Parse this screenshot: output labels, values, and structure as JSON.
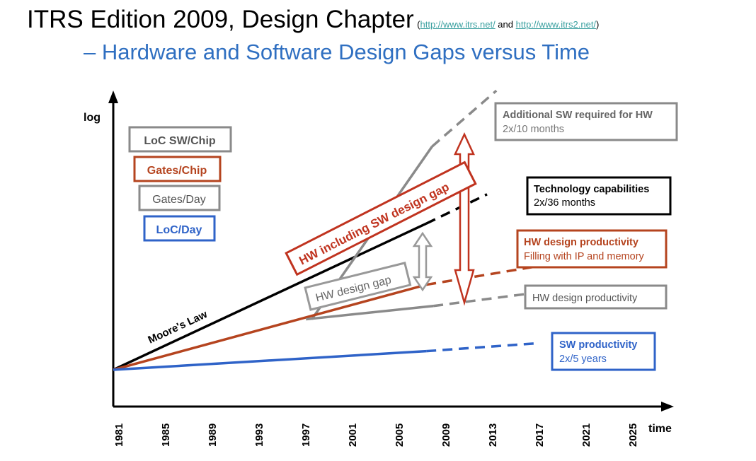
{
  "slide": {
    "title": "ITRS Edition 2009, Design Chapter",
    "links_open": "(",
    "link1": "http://www.itrs.net/",
    "links_and": " and ",
    "link2": "http://www.itrs2.net/",
    "links_close": ")",
    "subtitle": "–    Hardware and Software Design Gaps versus Time"
  },
  "colors": {
    "black": "#000000",
    "red": "#b5441f",
    "gray": "#8a8a8a",
    "blue": "#2f63c8",
    "redBox": "#c0331f"
  },
  "chart_data": {
    "type": "line",
    "ylabel": "log",
    "xlabel": "time",
    "y_scale": "log",
    "x_ticks": [
      "1981",
      "1985",
      "1989",
      "1993",
      "1997",
      "2001",
      "2005",
      "2009",
      "2013",
      "2017",
      "2021",
      "2025"
    ],
    "xlim": [
      1981,
      2025
    ],
    "legend": [
      {
        "label": "LoC SW/Chip",
        "color": "#8a8a8a"
      },
      {
        "label": "Gates/Chip",
        "color": "#b5441f"
      },
      {
        "label": "Gates/Day",
        "color": "#8a8a8a"
      },
      {
        "label": "LoC/Day",
        "color": "#2f63c8"
      }
    ],
    "series": [
      {
        "name": "Moore's Law",
        "color": "#000000",
        "solid": [
          [
            1981,
            0.0
          ],
          [
            2007.8,
            0.55
          ]
        ],
        "dashed": [
          [
            2007.8,
            0.55
          ],
          [
            2013,
            0.66
          ]
        ]
      },
      {
        "name": "Additional SW required for HW",
        "color": "#8a8a8a",
        "solid": [
          [
            1998,
            0.19
          ],
          [
            2008.3,
            0.84
          ]
        ],
        "dashed": [
          [
            2008.3,
            0.84
          ],
          [
            2013.8,
            1.05
          ]
        ]
      },
      {
        "name": "HW design productivity Filling with IP and memory",
        "color": "#b5441f",
        "solid": [
          [
            1981,
            0.0
          ],
          [
            2007.8,
            0.32
          ]
        ],
        "dashed": [
          [
            2007.8,
            0.32
          ],
          [
            2017.4,
            0.39
          ]
        ]
      },
      {
        "name": "HW design productivity",
        "color": "#8a8a8a",
        "solid": [
          [
            1997.5,
            0.19
          ],
          [
            2008.4,
            0.24
          ]
        ],
        "dashed": [
          [
            2008.4,
            0.24
          ],
          [
            2017.2,
            0.29
          ]
        ]
      },
      {
        "name": "SW productivity",
        "color": "#2f63c8",
        "solid": [
          [
            1981,
            0.0
          ],
          [
            2007.8,
            0.07
          ]
        ],
        "dashed": [
          [
            2007.8,
            0.07
          ],
          [
            2017.4,
            0.1
          ]
        ]
      }
    ],
    "annotations": [
      {
        "text": "Additional SW required for HW",
        "sub": "2x/10 months",
        "color": "#8a8a8a"
      },
      {
        "text": "Technology capabilities",
        "sub": "2x/36 months",
        "color": "#000000"
      },
      {
        "text": "HW design productivity",
        "sub": "Filling with IP and memory",
        "color": "#b5441f"
      },
      {
        "text": "HW design productivity",
        "sub": "",
        "color": "#8a8a8a"
      },
      {
        "text": "SW productivity",
        "sub": "2x/5 years",
        "color": "#2f63c8"
      }
    ],
    "gap_labels": {
      "moores_law": "Moore's Law",
      "hw_sw_gap": "HW including SW design gap",
      "hw_gap": "HW design gap"
    }
  }
}
